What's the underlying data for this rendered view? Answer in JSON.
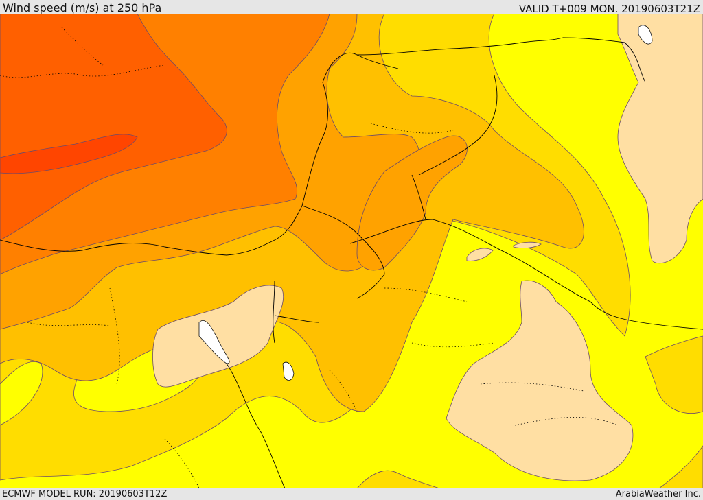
{
  "header": {
    "title": "Wind speed (m/s) at 250 hPa",
    "valid": "VALID T+009 MON. 20190603T21Z"
  },
  "footer": {
    "model_run": "ECMWF MODEL RUN: 20190603T12Z",
    "brand": "ArabiaWeather Inc."
  },
  "map": {
    "field": "wind speed 250 hPa",
    "colors": {
      "sea_white": "#ffffff",
      "band_light": "#ffdfa3",
      "band_yellow": "#ffff00",
      "band_gold": "#ffdd00",
      "band_amber": "#ffc000",
      "band_orange_light": "#ffa200",
      "band_orange": "#ff8000",
      "band_dark_orange": "#ff6000",
      "band_red_orange": "#ff4500",
      "contour_line": "#6b4a6b",
      "border_line": "#000000"
    }
  }
}
